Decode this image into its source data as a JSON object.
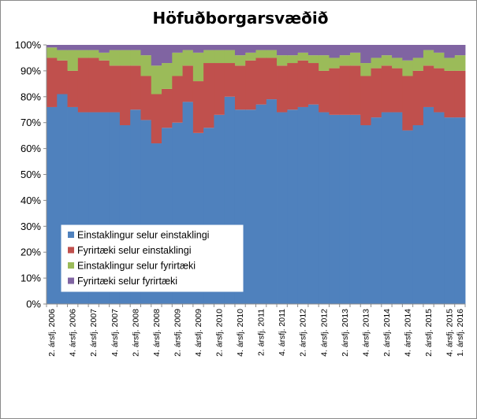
{
  "chart_data": {
    "type": "bar",
    "stacked": true,
    "title": "Höfuðborgarsvæðið",
    "xlabel": "",
    "ylabel": "",
    "ylim": [
      0,
      100
    ],
    "y_ticks": [
      "0%",
      "10%",
      "20%",
      "30%",
      "40%",
      "50%",
      "60%",
      "70%",
      "80%",
      "90%",
      "100%"
    ],
    "grid": false,
    "legend_position": "center-left",
    "categories": [
      "2. ársfj. 2006",
      "3. ársfj. 2006",
      "4. ársfj. 2006",
      "1. ársfj. 2007",
      "2. ársfj. 2007",
      "3. ársfj. 2007",
      "4. ársfj. 2007",
      "1. ársfj. 2008",
      "2. ársfj. 2008",
      "3. ársfj. 2008",
      "4. ársfj. 2008",
      "1. ársfj. 2009",
      "2. ársfj. 2009",
      "3. ársfj. 2009",
      "4. ársfj. 2009",
      "1. ársfj. 2010",
      "2. ársfj. 2010",
      "3. ársfj. 2010",
      "4. ársfj. 2010",
      "1. ársfj. 2011",
      "2. ársfj. 2011",
      "3. ársfj. 2011",
      "4. ársfj. 2011",
      "1. ársfj. 2012",
      "2. ársfj. 2012",
      "3. ársfj. 2012",
      "4. ársfj. 2012",
      "1. ársfj. 2013",
      "2. ársfj. 2013",
      "3. ársfj. 2013",
      "4. ársfj. 2013",
      "1. ársfj. 2014",
      "2. ársfj. 2014",
      "3. ársfj. 2014",
      "4. ársfj. 2014",
      "1. ársfj. 2015",
      "2. ársfj. 2015",
      "3. ársfj. 2015",
      "4. ársfj. 2015",
      "1. ársfj. 2016"
    ],
    "x_tick_labels": [
      "2. ársfj. 2006",
      "4. ársfj. 2006",
      "2. ársfj. 2007",
      "4. ársfj. 2007",
      "2. ársfj. 2008",
      "4. ársfj. 2008",
      "2. ársfj. 2009",
      "4. ársfj. 2009",
      "2. ársfj. 2010",
      "4. ársfj. 2010",
      "2. ársfj. 2011",
      "4. ársfj. 2011",
      "2. ársfj. 2012",
      "4. ársfj. 2012",
      "2. ársfj. 2013",
      "4. ársfj. 2013",
      "2. ársfj. 2014",
      "4. ársfj. 2014",
      "2. ársfj. 2015",
      "4. ársfj. 2015",
      "1. ársfj. 2016"
    ],
    "series": [
      {
        "name": "Einstaklingur selur einstaklingi",
        "color": "#4f81bd",
        "values": [
          76,
          81,
          76,
          74,
          74,
          74,
          74,
          69,
          75,
          71,
          62,
          68,
          70,
          78,
          66,
          68,
          73,
          80,
          75,
          75,
          77,
          79,
          74,
          75,
          76,
          77,
          74,
          73,
          73,
          73,
          69,
          72,
          74,
          74,
          67,
          69,
          76,
          74,
          72,
          72
        ]
      },
      {
        "name": "Fyrirtæki selur einstaklingi",
        "color": "#c0504d",
        "values": [
          19,
          13,
          14,
          21,
          21,
          20,
          18,
          23,
          17,
          17,
          19,
          15,
          18,
          14,
          20,
          25,
          20,
          13,
          17,
          19,
          18,
          16,
          18,
          18,
          18,
          16,
          16,
          18,
          19,
          19,
          19,
          19,
          18,
          17,
          21,
          21,
          16,
          17,
          18,
          18
        ]
      },
      {
        "name": "Einstaklingur selur fyrirtæki",
        "color": "#9bbb59",
        "values": [
          4,
          4,
          8,
          3,
          3,
          3,
          6,
          6,
          6,
          8,
          11,
          10,
          9,
          6,
          11,
          5,
          5,
          5,
          4,
          3,
          3,
          3,
          4,
          3,
          3,
          3,
          6,
          4,
          4,
          5,
          5,
          4,
          4,
          4,
          6,
          5,
          6,
          6,
          5,
          6
        ]
      },
      {
        "name": "Fyrirtæki selur fyrirtæki",
        "color": "#8064a2",
        "values": [
          1,
          2,
          2,
          2,
          2,
          3,
          2,
          2,
          2,
          4,
          8,
          7,
          3,
          2,
          3,
          2,
          2,
          2,
          4,
          3,
          2,
          2,
          4,
          4,
          3,
          4,
          4,
          5,
          4,
          3,
          7,
          5,
          4,
          5,
          6,
          5,
          2,
          3,
          5,
          4
        ]
      }
    ]
  }
}
